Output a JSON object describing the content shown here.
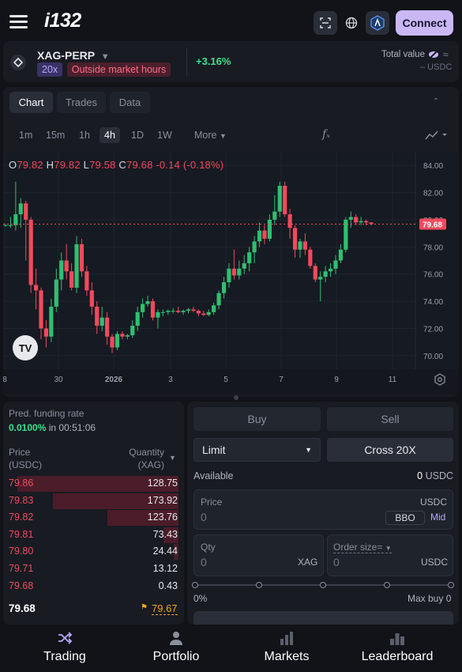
{
  "header": {
    "logo": "i132",
    "connect_label": "Connect"
  },
  "market": {
    "symbol": "XAG-PERP",
    "leverage": "20x",
    "status": "Outside market hours",
    "change": "+3.16%",
    "total_value_label": "Total value",
    "total_value": "– USDC"
  },
  "chart_tabs": {
    "chart": "Chart",
    "trades": "Trades",
    "data": "Data"
  },
  "timeframes": [
    "1m",
    "15m",
    "1h",
    "4h",
    "1D",
    "1W"
  ],
  "timeframe_selected": "4h",
  "more_label": "More",
  "ohlc": {
    "o_label": "O",
    "o": "79.82",
    "h_label": "H",
    "h": "79.82",
    "l_label": "L",
    "l": "79.58",
    "c_label": "C",
    "c": "79.68",
    "change": "-0.14 (-0.18%)"
  },
  "chart_data": {
    "type": "candlestick",
    "y_ticks": [
      "84.00",
      "82.00",
      "80.00",
      "78.00",
      "76.00",
      "74.00",
      "72.00",
      "70.00"
    ],
    "ylim": [
      69.0,
      85.0
    ],
    "x_ticks": [
      "8",
      "30",
      "2026",
      "3",
      "5",
      "7",
      "9",
      "11"
    ],
    "last_price": "79.68",
    "candles": [
      [
        79.6,
        79.7,
        79.5,
        79.6
      ],
      [
        79.6,
        80.2,
        79.4,
        79.6
      ],
      [
        79.6,
        82.8,
        79.2,
        80.4
      ],
      [
        80.4,
        81.6,
        79.4,
        81.2
      ],
      [
        81.2,
        81.4,
        77.0,
        80.0
      ],
      [
        80.0,
        80.2,
        74.6,
        75.2
      ],
      [
        75.2,
        76.4,
        73.4,
        74.8
      ],
      [
        74.8,
        75.0,
        71.2,
        72.0
      ],
      [
        72.0,
        72.6,
        70.6,
        71.4
      ],
      [
        71.4,
        74.2,
        71.0,
        73.6
      ],
      [
        73.6,
        76.4,
        73.2,
        75.6
      ],
      [
        75.6,
        77.6,
        74.8,
        77.0
      ],
      [
        77.0,
        78.2,
        75.6,
        76.2
      ],
      [
        76.2,
        76.8,
        74.8,
        75.0
      ],
      [
        75.0,
        78.8,
        74.6,
        78.2
      ],
      [
        78.2,
        78.6,
        75.8,
        76.2
      ],
      [
        76.2,
        76.6,
        74.4,
        74.8
      ],
      [
        74.8,
        75.4,
        73.0,
        73.6
      ],
      [
        73.6,
        74.0,
        71.6,
        72.2
      ],
      [
        72.2,
        73.6,
        71.8,
        72.8
      ],
      [
        72.8,
        73.2,
        70.8,
        71.4
      ],
      [
        71.4,
        71.6,
        70.2,
        70.6
      ],
      [
        70.6,
        71.8,
        70.4,
        71.6
      ],
      [
        71.6,
        71.8,
        71.2,
        71.4
      ],
      [
        71.4,
        71.6,
        71.2,
        71.5
      ],
      [
        71.5,
        72.6,
        71.3,
        72.2
      ],
      [
        72.2,
        73.6,
        71.8,
        73.2
      ],
      [
        73.2,
        74.2,
        72.8,
        73.8
      ],
      [
        73.8,
        74.4,
        73.6,
        74.0
      ],
      [
        74.0,
        74.2,
        72.6,
        72.8
      ],
      [
        72.8,
        73.4,
        72.0,
        73.2
      ],
      [
        73.2,
        73.4,
        72.9,
        73.2
      ],
      [
        73.2,
        73.4,
        73.0,
        73.3
      ],
      [
        73.3,
        73.5,
        73.1,
        73.3
      ],
      [
        73.3,
        73.6,
        73.1,
        73.2
      ],
      [
        73.2,
        73.4,
        73.0,
        73.3
      ],
      [
        73.3,
        73.5,
        73.1,
        73.4
      ],
      [
        73.4,
        73.6,
        73.2,
        73.3
      ],
      [
        73.3,
        73.4,
        72.9,
        73.1
      ],
      [
        73.1,
        73.3,
        72.9,
        73.0
      ],
      [
        73.0,
        73.4,
        72.9,
        73.2
      ],
      [
        73.2,
        73.9,
        73.0,
        73.7
      ],
      [
        73.7,
        74.8,
        73.4,
        74.6
      ],
      [
        74.6,
        75.8,
        74.2,
        75.4
      ],
      [
        75.4,
        76.8,
        75.0,
        76.4
      ],
      [
        76.4,
        77.8,
        75.6,
        75.9
      ],
      [
        75.9,
        77.0,
        75.6,
        76.4
      ],
      [
        76.4,
        77.4,
        76.0,
        76.8
      ],
      [
        76.8,
        78.0,
        76.2,
        77.6
      ],
      [
        77.6,
        78.8,
        76.8,
        78.4
      ],
      [
        78.4,
        79.8,
        78.0,
        79.2
      ],
      [
        79.2,
        79.6,
        78.2,
        78.6
      ],
      [
        78.6,
        80.4,
        78.4,
        80.0
      ],
      [
        80.0,
        81.8,
        79.6,
        80.6
      ],
      [
        80.6,
        82.8,
        80.2,
        82.5
      ],
      [
        82.5,
        82.8,
        80.2,
        80.4
      ],
      [
        80.4,
        80.8,
        78.6,
        79.4
      ],
      [
        79.4,
        79.6,
        77.2,
        77.8
      ],
      [
        77.8,
        78.6,
        77.2,
        78.4
      ],
      [
        78.4,
        79.0,
        77.4,
        77.8
      ],
      [
        77.8,
        78.0,
        76.4,
        76.6
      ],
      [
        76.6,
        76.8,
        75.4,
        75.6
      ],
      [
        75.6,
        76.2,
        74.0,
        75.8
      ],
      [
        75.8,
        76.6,
        75.4,
        76.2
      ],
      [
        76.2,
        76.8,
        75.8,
        76.4
      ],
      [
        76.4,
        77.4,
        76.0,
        77.0
      ],
      [
        77.0,
        78.2,
        76.8,
        77.8
      ],
      [
        77.8,
        80.2,
        77.6,
        80.0
      ],
      [
        80.0,
        80.6,
        79.4,
        80.2
      ],
      [
        80.2,
        80.4,
        79.6,
        79.8
      ],
      [
        79.8,
        80.2,
        79.6,
        79.9
      ],
      [
        79.9,
        80.0,
        79.6,
        79.8
      ],
      [
        79.8,
        79.82,
        79.58,
        79.68
      ]
    ]
  },
  "orderbook": {
    "funding_label": "Pred. funding rate",
    "funding_rate": "0.0100%",
    "funding_in": "in 00:51:06",
    "price_header_1": "Price",
    "price_header_2": "(USDC)",
    "qty_header_1": "Quantity",
    "qty_header_2": "(XAG)",
    "asks": [
      {
        "price": "79.86",
        "qty": "128.75",
        "depth": 0.95
      },
      {
        "price": "79.83",
        "qty": "173.92",
        "depth": 0.74
      },
      {
        "price": "79.82",
        "qty": "123.76",
        "depth": 0.42
      },
      {
        "price": "79.81",
        "qty": "73.43",
        "depth": 0.09
      },
      {
        "price": "79.80",
        "qty": "24.44",
        "depth": 0.03
      },
      {
        "price": "79.71",
        "qty": "13.12",
        "depth": 0.0
      },
      {
        "price": "79.68",
        "qty": "0.43",
        "depth": 0.0
      }
    ],
    "mid_price": "79.68",
    "mark_price": "79.67"
  },
  "order_form": {
    "buy_label": "Buy",
    "sell_label": "Sell",
    "order_type": "Limit",
    "margin_mode": "Cross 20X",
    "available_label": "Available",
    "available_value": "0",
    "available_unit": "USDC",
    "price_label": "Price",
    "price_unit": "USDC",
    "price_placeholder": "0",
    "bbo_label": "BBO",
    "mid_label": "Mid",
    "qty_label": "Qty",
    "qty_unit": "XAG",
    "qty_placeholder": "0",
    "order_size_label": "Order size=",
    "order_size_unit": "USDC",
    "order_size_placeholder": "0",
    "slider_pct": "0%",
    "max_buy_label": "Max buy",
    "max_buy_value": "0"
  },
  "bottom_nav": [
    {
      "label": "Trading",
      "icon": "shuffle-icon"
    },
    {
      "label": "Portfolio",
      "icon": "user-icon"
    },
    {
      "label": "Markets",
      "icon": "bar-chart-icon"
    },
    {
      "label": "Leaderboard",
      "icon": "podium-icon"
    }
  ]
}
